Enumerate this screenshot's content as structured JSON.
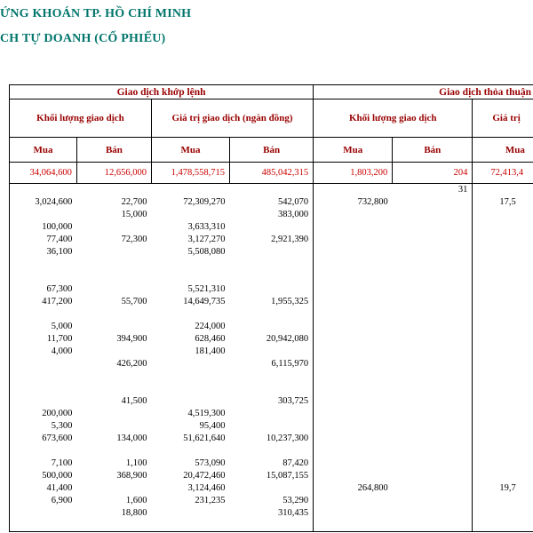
{
  "page": {
    "title_line1": "ỨNG KHOÁN TP. HỒ CHÍ MINH",
    "title_line2": "CH TỰ DOANH (CỔ PHIẾU)"
  },
  "colors": {
    "title": "#00756b",
    "header_text": "#990000",
    "totals_text": "#cc0000",
    "border": "#000000"
  },
  "table": {
    "group_headers": [
      {
        "label": "Giao dịch khớp lệnh",
        "span": 4
      },
      {
        "label": "Giao dịch thỏa thuận",
        "span": 4
      }
    ],
    "sub_headers": [
      {
        "label": "Khối lượng giao dịch",
        "span": 2
      },
      {
        "label": "Giá trị giao dịch (ngàn đồng)",
        "span": 2
      },
      {
        "label": "Khối lượng giao dịch",
        "span": 2
      },
      {
        "label": "Giá trị",
        "span": 2
      }
    ],
    "col_headers": [
      "Mua",
      "Bán",
      "Mua",
      "Bán",
      "Mua",
      "Bán",
      "Mua",
      ""
    ],
    "totals": [
      "34,064,600",
      "12,656,000",
      "1,478,558,715",
      "485,042,315",
      "1,803,200",
      "204",
      "72,413,4",
      ""
    ],
    "rows": [
      [
        "",
        "",
        "",
        "",
        "",
        "31",
        "",
        ""
      ],
      [
        "3,024,600",
        "22,700",
        "72,309,270",
        "542,070",
        "732,800",
        "",
        "17,5",
        ""
      ],
      [
        "",
        "15,000",
        "",
        "383,000",
        "",
        "",
        "",
        ""
      ],
      [
        "100,000",
        "",
        "3,633,310",
        "",
        "",
        "",
        "",
        ""
      ],
      [
        "77,400",
        "72,300",
        "3,127,270",
        "2,921,390",
        "",
        "",
        "",
        ""
      ],
      [
        "36,100",
        "",
        "5,508,080",
        "",
        "",
        "",
        "",
        ""
      ],
      [
        "",
        "",
        "",
        "",
        "",
        "",
        "",
        ""
      ],
      [
        "",
        "",
        "",
        "",
        "",
        "",
        "",
        ""
      ],
      [
        "67,300",
        "",
        "5,521,310",
        "",
        "",
        "",
        "",
        ""
      ],
      [
        "417,200",
        "55,700",
        "14,649,735",
        "1,955,325",
        "",
        "",
        "",
        ""
      ],
      [
        "",
        "",
        "",
        "",
        "",
        "",
        "",
        ""
      ],
      [
        "5,000",
        "",
        "224,000",
        "",
        "",
        "",
        "",
        ""
      ],
      [
        "11,700",
        "394,900",
        "628,460",
        "20,942,080",
        "",
        "",
        "",
        ""
      ],
      [
        "4,000",
        "",
        "181,400",
        "",
        "",
        "",
        "",
        ""
      ],
      [
        "",
        "426,200",
        "",
        "6,115,970",
        "",
        "",
        "",
        ""
      ],
      [
        "",
        "",
        "",
        "",
        "",
        "",
        "",
        ""
      ],
      [
        "",
        "",
        "",
        "",
        "",
        "",
        "",
        ""
      ],
      [
        "",
        "41,500",
        "",
        "303,725",
        "",
        "",
        "",
        ""
      ],
      [
        "200,000",
        "",
        "4,519,300",
        "",
        "",
        "",
        "",
        ""
      ],
      [
        "5,300",
        "",
        "95,400",
        "",
        "",
        "",
        "",
        ""
      ],
      [
        "673,600",
        "134,000",
        "51,621,640",
        "10,237,300",
        "",
        "",
        "",
        ""
      ],
      [
        "",
        "",
        "",
        "",
        "",
        "",
        "",
        ""
      ],
      [
        "7,100",
        "1,100",
        "573,090",
        "87,420",
        "",
        "",
        "",
        ""
      ],
      [
        "500,000",
        "368,900",
        "20,472,460",
        "15,087,155",
        "",
        "",
        "",
        ""
      ],
      [
        "41,400",
        "",
        "3,124,460",
        "",
        "264,800",
        "",
        "19,7",
        ""
      ],
      [
        "6,900",
        "1,600",
        "231,235",
        "53,290",
        "",
        "",
        "",
        ""
      ],
      [
        "",
        "18,800",
        "",
        "310,435",
        "",
        "",
        "",
        ""
      ],
      [
        "",
        "",
        "",
        "",
        "",
        "",
        "",
        ""
      ]
    ]
  }
}
